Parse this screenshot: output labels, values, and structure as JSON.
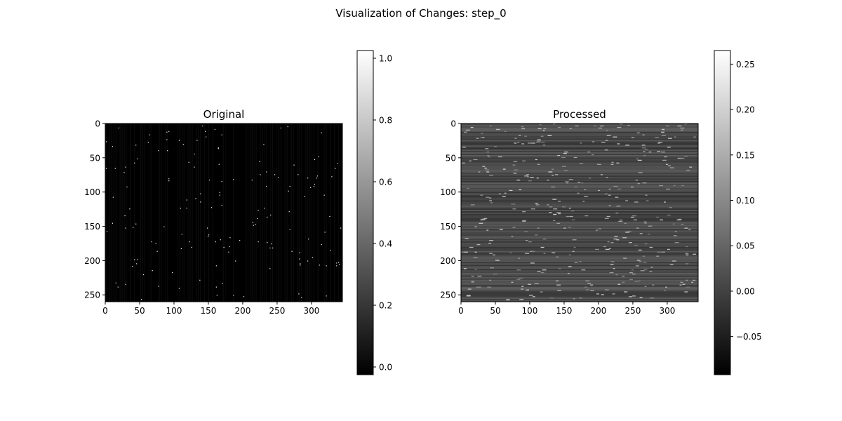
{
  "figure": {
    "suptitle": "Visualization of Changes: step_0"
  },
  "chart_data": [
    {
      "type": "heatmap",
      "title": "Original",
      "colormap": "gray",
      "xlim": [
        0,
        345
      ],
      "ylim": [
        260,
        0
      ],
      "xticks": [
        0,
        50,
        100,
        150,
        200,
        250,
        300
      ],
      "yticks": [
        0,
        50,
        100,
        150,
        200,
        250
      ],
      "background_value": 0.0,
      "bright_points_value": 1.0,
      "bright_points_count": 160,
      "colorbar": {
        "range": [
          -0.025,
          1.025
        ],
        "ticks": [
          0.0,
          0.2,
          0.4,
          0.6,
          0.8,
          1.0
        ],
        "tick_labels": [
          "0.0",
          "0.2",
          "0.4",
          "0.6",
          "0.8",
          "1.0"
        ]
      }
    },
    {
      "type": "heatmap",
      "title": "Processed",
      "colormap": "gray",
      "xlim": [
        0,
        345
      ],
      "ylim": [
        260,
        0
      ],
      "xticks": [
        0,
        50,
        100,
        150,
        200,
        250,
        300
      ],
      "yticks": [
        0,
        50,
        100,
        150,
        200,
        250
      ],
      "background_value_range": [
        -0.02,
        0.04
      ],
      "highlight_value_range": [
        0.08,
        0.2
      ],
      "colorbar": {
        "range": [
          -0.092,
          0.265
        ],
        "ticks": [
          -0.05,
          0.0,
          0.05,
          0.1,
          0.15,
          0.2,
          0.25
        ],
        "tick_labels": [
          "−0.05",
          "0.00",
          "0.05",
          "0.10",
          "0.15",
          "0.20",
          "0.25"
        ]
      }
    }
  ]
}
